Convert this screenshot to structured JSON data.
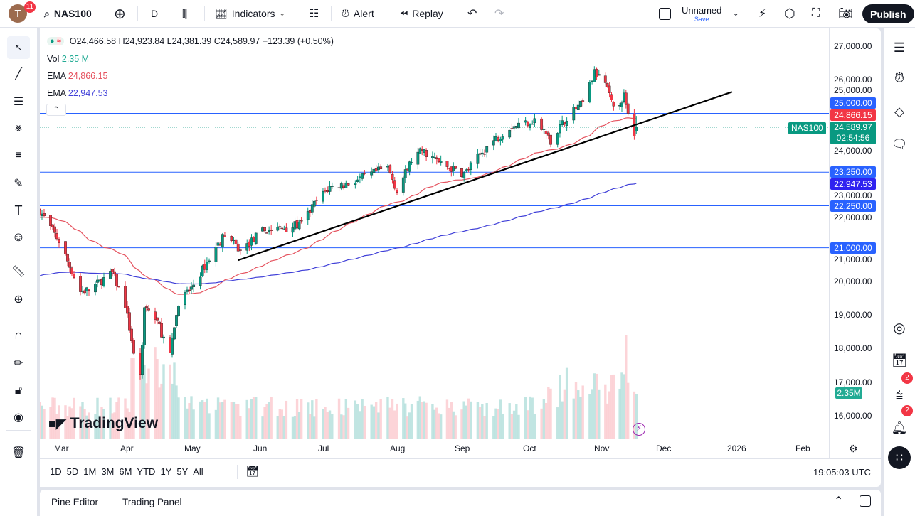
{
  "topbar": {
    "avatar_letter": "T",
    "avatar_badge": "11",
    "symbol": "NAS100",
    "interval": "D",
    "indicators": "Indicators",
    "alert": "Alert",
    "replay": "Replay",
    "layout_name": "Unnamed",
    "save": "Save",
    "publish": "Publish"
  },
  "legend": {
    "ohlc": "O24,466.58 H24,923.84 L24,381.39 C24,589.97 +123.39 (+0.50%)",
    "vol_label": "Vol",
    "vol_value": "2.35 M",
    "ema1_label": "EMA",
    "ema1_value": "24,866.15",
    "ema2_label": "EMA",
    "ema2_value": "22,947.53"
  },
  "colors": {
    "up": "#089981",
    "down": "#f23645",
    "ema_fast": "#e5535f",
    "ema_slow": "#3f3fd8",
    "hline": "#2962ff",
    "trendline": "#000000"
  },
  "price_tags": {
    "level_25000": "25,000.00",
    "ema_fast": "24,866.15",
    "last_symbol": "NAS100",
    "last_price": "24,589.97",
    "countdown": "02:54:56",
    "level_23250": "23,250.00",
    "ema_slow": "22,947.53",
    "level_22250": "22,250.00",
    "level_21000": "21,000.00",
    "volume": "2.35M"
  },
  "watermark": "TradingView",
  "range_buttons": [
    "1D",
    "5D",
    "1M",
    "3M",
    "6M",
    "YTD",
    "1Y",
    "5Y",
    "All"
  ],
  "clock": "19:05:03 UTC",
  "bottom_tabs": [
    "Pine Editor",
    "Trading Panel"
  ],
  "right_badges": {
    "feed": "2",
    "notifications": "2"
  },
  "chart_data": {
    "type": "candlestick",
    "symbol": "NAS100",
    "interval": "D",
    "y_ticks": [
      "27,000.00",
      "26,000.00",
      "25,000.00",
      "24,000.00",
      "23,000.00",
      "22,000.00",
      "21,000.00",
      "20,000.00",
      "19,000.00",
      "18,000.00",
      "17,000.00",
      "16,000.00"
    ],
    "ylim": [
      15400,
      27600
    ],
    "x_ticks": [
      "Mar",
      "Apr",
      "May",
      "Jun",
      "Jul",
      "Aug",
      "Sep",
      "Oct",
      "Nov",
      "Dec",
      "2026",
      "Feb"
    ],
    "last_bar": {
      "date": "2025-11-18",
      "open": 24466.58,
      "high": 24923.84,
      "low": 24381.39,
      "close": 24589.97,
      "volume": "2.35M"
    },
    "approx_closes": [
      [
        "2025-02-19",
        22100
      ],
      [
        "2025-02-28",
        21200
      ],
      [
        "2025-03-10",
        19700
      ],
      [
        "2025-03-14",
        19750
      ],
      [
        "2025-03-25",
        20250
      ],
      [
        "2025-03-31",
        19300
      ],
      [
        "2025-04-04",
        17900
      ],
      [
        "2025-04-07",
        17100
      ],
      [
        "2025-04-09",
        19300
      ],
      [
        "2025-04-15",
        18800
      ],
      [
        "2025-04-21",
        17800
      ],
      [
        "2025-04-25",
        19400
      ],
      [
        "2025-05-01",
        19800
      ],
      [
        "2025-05-12",
        21000
      ],
      [
        "2025-05-16",
        21400
      ],
      [
        "2025-05-23",
        20900
      ],
      [
        "2025-06-02",
        21500
      ],
      [
        "2025-06-13",
        21600
      ],
      [
        "2025-06-20",
        21700
      ],
      [
        "2025-06-27",
        22400
      ],
      [
        "2025-07-03",
        22800
      ],
      [
        "2025-07-10",
        22900
      ],
      [
        "2025-07-18",
        23100
      ],
      [
        "2025-07-28",
        23400
      ],
      [
        "2025-08-01",
        22700
      ],
      [
        "2025-08-08",
        23600
      ],
      [
        "2025-08-13",
        23900
      ],
      [
        "2025-08-22",
        23500
      ],
      [
        "2025-09-02",
        23200
      ],
      [
        "2025-09-12",
        24000
      ],
      [
        "2025-09-22",
        24600
      ],
      [
        "2025-10-03",
        24800
      ],
      [
        "2025-10-10",
        24200
      ],
      [
        "2025-10-17",
        24900
      ],
      [
        "2025-10-24",
        25300
      ],
      [
        "2025-10-29",
        26200
      ],
      [
        "2025-11-03",
        25900
      ],
      [
        "2025-11-07",
        25100
      ],
      [
        "2025-11-12",
        25500
      ],
      [
        "2025-11-14",
        24900
      ],
      [
        "2025-11-17",
        24400
      ]
    ],
    "indicators": [
      {
        "type": "EMA",
        "last": 24866.15
      },
      {
        "type": "EMA",
        "last": 22947.53
      }
    ],
    "horizontal_levels": [
      25000,
      23250,
      22250,
      21000
    ],
    "trendline": [
      [
        "2025-05-22",
        20630
      ],
      [
        "2025-12-31",
        25640
      ]
    ]
  }
}
